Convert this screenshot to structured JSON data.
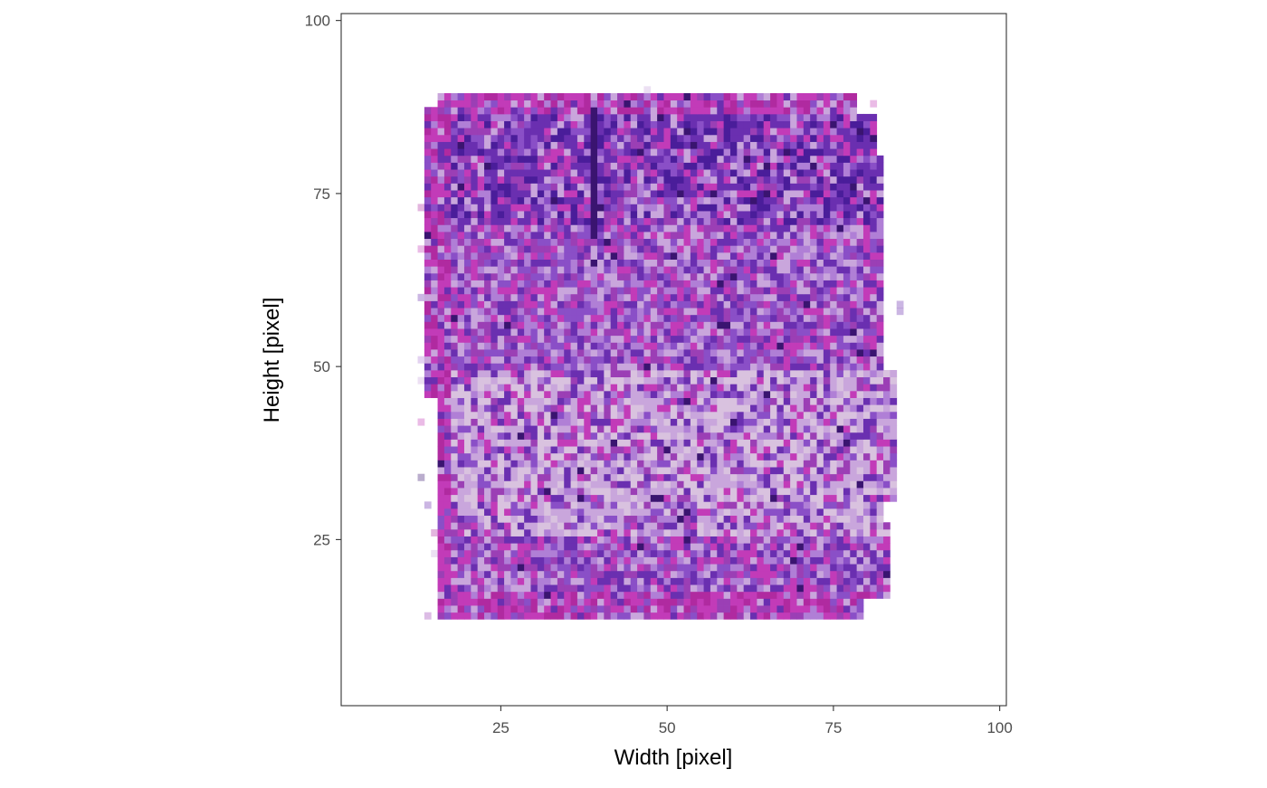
{
  "chart_data": {
    "type": "heatmap",
    "title": "",
    "xlabel": "Width [pixel]",
    "ylabel": "Height [pixel]",
    "xlim": [
      1,
      101
    ],
    "ylim": [
      1,
      101
    ],
    "x_ticks": [
      25,
      50,
      75,
      100
    ],
    "y_ticks": [
      25,
      50,
      75,
      100
    ],
    "x_tick_labels": [
      "25",
      "50",
      "75",
      "100"
    ],
    "y_tick_labels": [
      "25",
      "50",
      "75",
      "100"
    ],
    "grid": false,
    "legend": "none",
    "cell_size": 1,
    "tissue_extent": {
      "x": [
        13,
        85
      ],
      "y": [
        14,
        90
      ]
    },
    "palette": [
      "#6a2fb0",
      "#8a4fc7",
      "#b07fd6",
      "#c9a6dc",
      "#9b3fb5",
      "#c23bb8",
      "#4a1d9a",
      "#3a1470",
      "#d9c2df",
      "#b02aa0"
    ]
  }
}
